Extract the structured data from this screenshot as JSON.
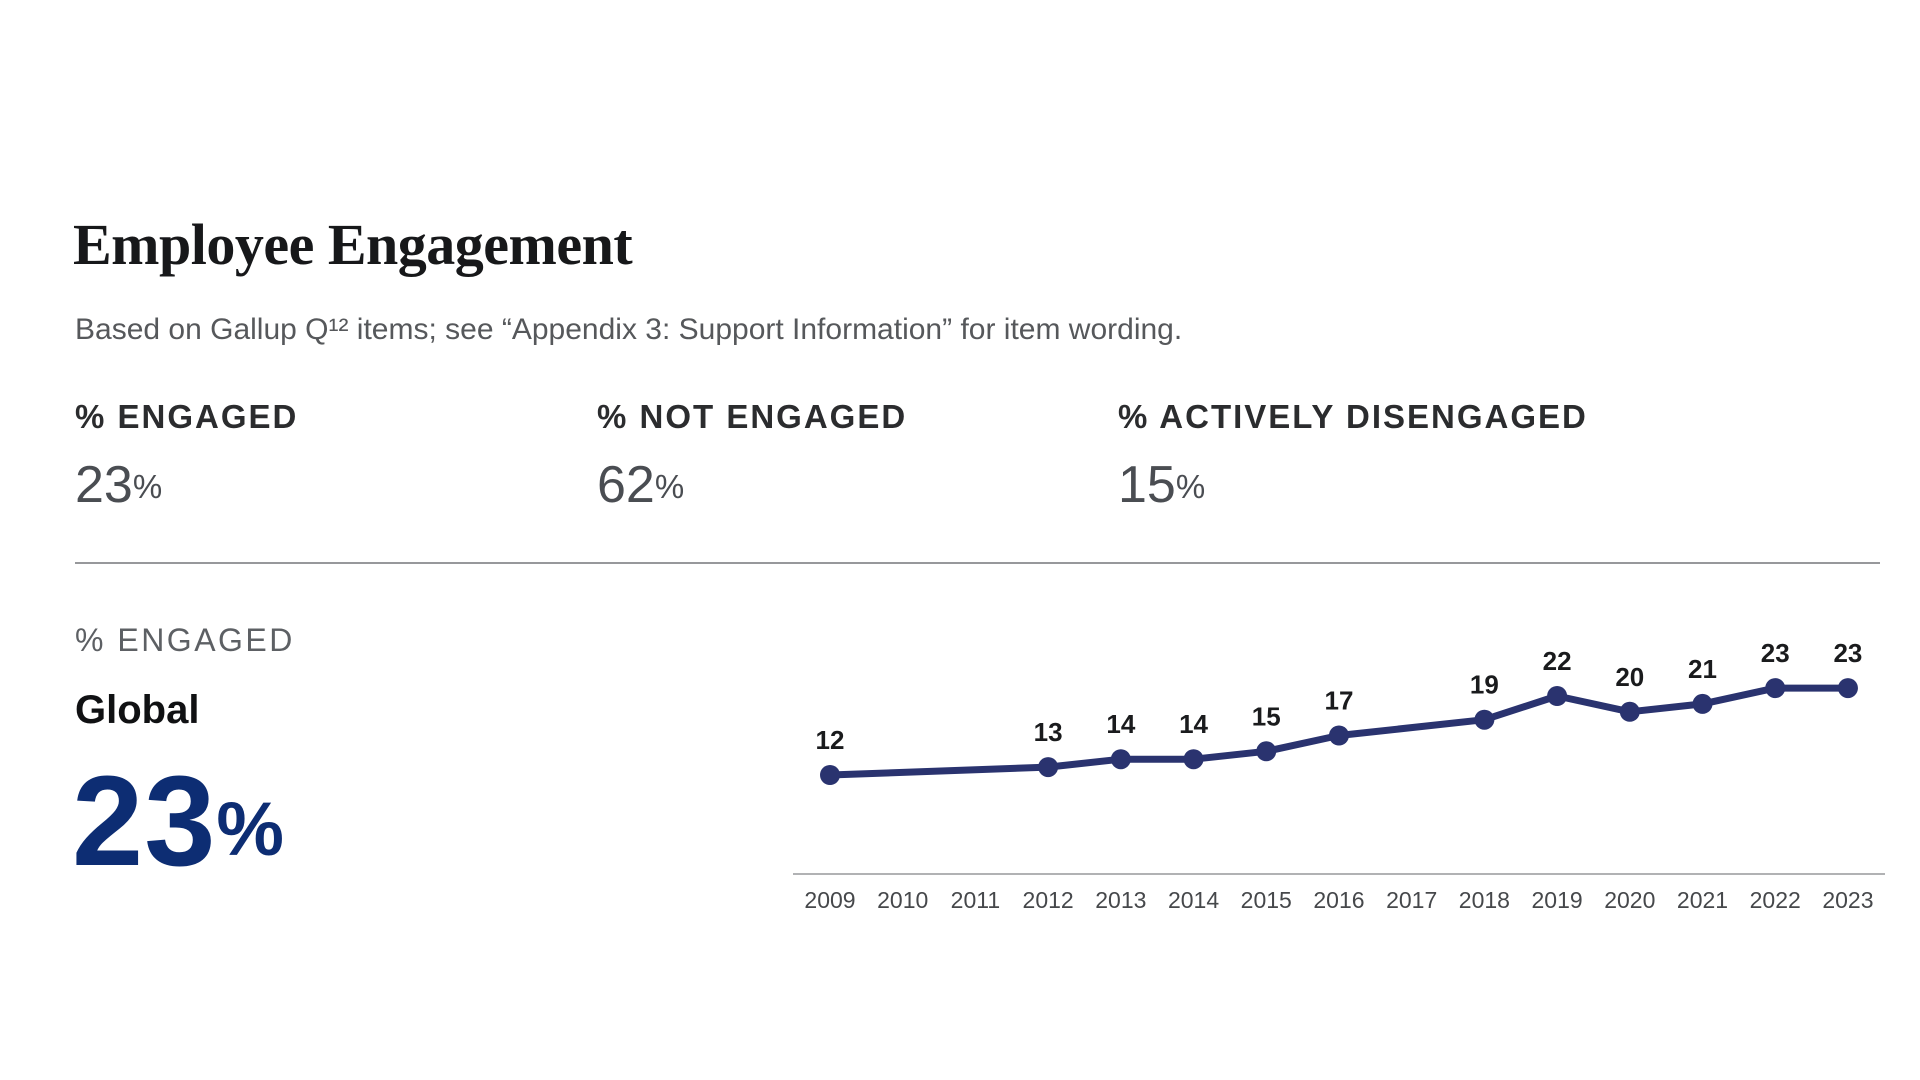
{
  "page": {
    "title": "Employee Engagement",
    "subtitle": "Based on Gallup Q¹² items; see “Appendix 3: Support Information” for item wording."
  },
  "summary_stats": [
    {
      "label": "% ENGAGED",
      "value": "23",
      "unit": "%"
    },
    {
      "label": "% NOT ENGAGED",
      "value": "62",
      "unit": "%"
    },
    {
      "label": "% ACTIVELY DISENGAGED",
      "value": "15",
      "unit": "%"
    }
  ],
  "highlight": {
    "section_label": "% ENGAGED",
    "series_name": "Global",
    "value": "23",
    "unit": "%"
  },
  "colors": {
    "line": "#2a336f",
    "big_value": "#0d2d73",
    "data_label": "#1a1b1d",
    "tick_label": "#46484b",
    "axis_line": "#97989b"
  },
  "chart_data": {
    "type": "line",
    "title": "% ENGAGED",
    "categories": [
      "2009",
      "2010",
      "2011",
      "2012",
      "2013",
      "2014",
      "2015",
      "2016",
      "2017",
      "2018",
      "2019",
      "2020",
      "2021",
      "2022",
      "2023"
    ],
    "series": [
      {
        "name": "Global",
        "points": [
          {
            "year": "2009",
            "value": 12
          },
          {
            "year": "2012",
            "value": 13
          },
          {
            "year": "2013",
            "value": 14
          },
          {
            "year": "2014",
            "value": 14
          },
          {
            "year": "2015",
            "value": 15
          },
          {
            "year": "2016",
            "value": 17
          },
          {
            "year": "2018",
            "value": 19
          },
          {
            "year": "2019",
            "value": 22
          },
          {
            "year": "2020",
            "value": 20
          },
          {
            "year": "2021",
            "value": 21
          },
          {
            "year": "2022",
            "value": 23
          },
          {
            "year": "2023",
            "value": 23
          }
        ]
      }
    ],
    "missing_years": [
      "2010",
      "2011",
      "2017"
    ],
    "ylim": [
      10,
      26
    ],
    "xlabel": "",
    "ylabel": "% Engaged",
    "grid": false,
    "legend": "none",
    "data_labels": true
  }
}
